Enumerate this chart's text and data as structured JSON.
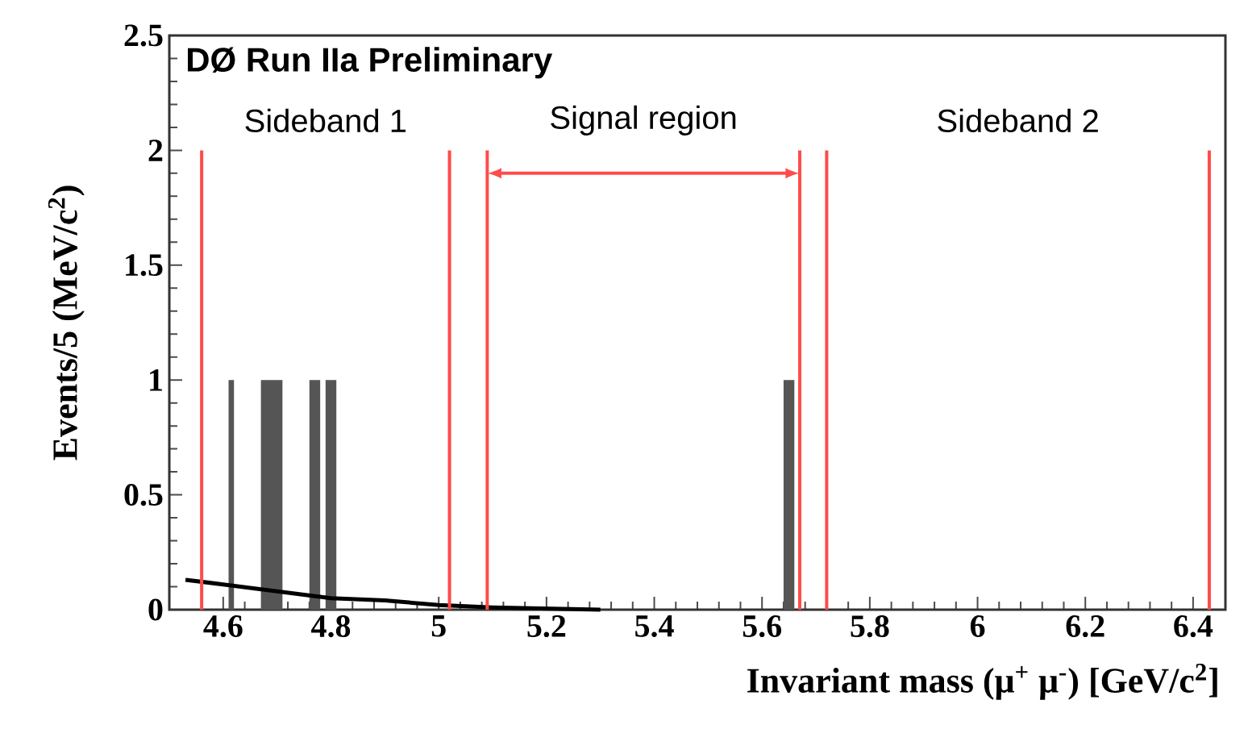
{
  "chart_data": {
    "type": "histogram",
    "title": "DØ Run IIa Preliminary",
    "xlabel": "Invariant mass (μ$^{+}$ μ$^{-}$) [GeV/c$^{2}$]",
    "ylabel": "Events/5 (MeV/c$^{2}$)",
    "bins": [
      4.61,
      4.62,
      4.67,
      4.69,
      4.71,
      4.76,
      4.78,
      4.79,
      4.81,
      5.64,
      5.66
    ],
    "values": [
      1,
      0,
      1,
      1,
      0,
      1,
      0,
      1,
      0,
      1
    ],
    "color": "#555555",
    "series": [
      {
        "type": "line",
        "color": "#000000",
        "x": [
          4.53,
          4.6,
          4.7,
          4.8,
          4.9,
          5.0,
          5.1,
          5.3
        ],
        "values": [
          0.13,
          0.11,
          0.08,
          0.05,
          0.04,
          0.02,
          0.01,
          0
        ]
      }
    ],
    "xlim": [
      4.5,
      6.46
    ],
    "ylim": [
      0,
      2.5
    ],
    "xticks": [
      4.6,
      4.8,
      5,
      5.2,
      5.4,
      5.6,
      5.8,
      6,
      6.2,
      6.4
    ],
    "yticks": [
      0,
      0.5,
      1,
      1.5,
      2,
      2.5
    ],
    "ref_lines": [
      {
        "axis": "x",
        "value": 4.56,
        "color": "#ff4b4b"
      },
      {
        "axis": "x",
        "value": 5.02,
        "color": "#ff4b4b"
      },
      {
        "axis": "x",
        "value": 5.09,
        "color": "#ff4b4b"
      },
      {
        "axis": "x",
        "value": 5.67,
        "color": "#ff4b4b"
      },
      {
        "axis": "x",
        "value": 5.72,
        "color": "#ff4b4b"
      },
      {
        "axis": "x",
        "value": 6.43,
        "color": "#ff4b4b"
      }
    ],
    "annotations": [
      "Sideband 1",
      "Signal region",
      "Sideband 2"
    ]
  }
}
